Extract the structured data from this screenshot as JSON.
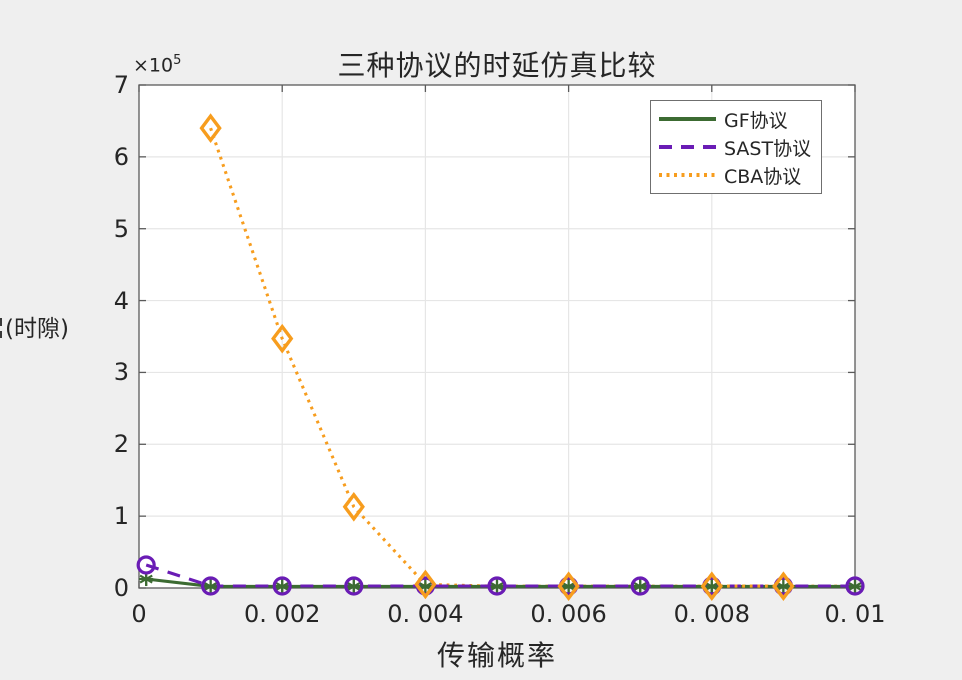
{
  "figure": {
    "title": "三种协议的时延仿真比较",
    "xlabel": "传输概率",
    "ylabel": "(时隙)",
    "exponent": {
      "base": "×10",
      "power": "5"
    }
  },
  "legend": {
    "items": [
      {
        "label": "GF协议",
        "color": "#3c6b32",
        "line": "solid"
      },
      {
        "label": "SAST协议",
        "color": "#6a1cb5",
        "line": "dashed"
      },
      {
        "label": "CBA协议",
        "color": "#f79d1e",
        "line": "dotted"
      }
    ]
  },
  "chart_data": {
    "type": "line",
    "title": "三种协议的时延仿真比较",
    "xlabel": "传输概率",
    "ylabel": "(时隙)",
    "y_exponent": 5,
    "xlim": [
      0,
      0.01
    ],
    "ylim": [
      0,
      700000
    ],
    "grid": true,
    "legend_position": "top-right",
    "x_ticks": {
      "values": [
        0,
        0.002,
        0.004,
        0.006,
        0.008,
        0.01
      ],
      "labels": [
        "0",
        "0. 002",
        "0. 004",
        "0. 006",
        "0. 008",
        "0. 01"
      ]
    },
    "y_ticks": {
      "values": [
        0,
        100000,
        200000,
        300000,
        400000,
        500000,
        600000,
        700000
      ],
      "labels": [
        "0",
        "1",
        "2",
        "3",
        "4",
        "5",
        "6",
        "7"
      ]
    },
    "series": [
      {
        "name": "GF协议",
        "color": "#3c6b32",
        "line": "solid",
        "marker": "asterisk",
        "x": [
          0.0001,
          0.001,
          0.002,
          0.003,
          0.004,
          0.005,
          0.006,
          0.007,
          0.008,
          0.009,
          0.01
        ],
        "y": [
          12500,
          2200,
          2200,
          2200,
          2200,
          2200,
          2200,
          2200,
          2200,
          2200,
          2200
        ],
        "marker_x": [
          0.0001,
          0.001,
          0.002,
          0.003,
          0.004,
          0.005,
          0.006,
          0.007,
          0.008,
          0.009,
          0.01
        ]
      },
      {
        "name": "SAST协议",
        "color": "#6a1cb5",
        "line": "dashed",
        "marker": "circle",
        "x": [
          0.0001,
          0.001,
          0.002,
          0.003,
          0.004,
          0.005,
          0.006,
          0.007,
          0.008,
          0.009,
          0.01
        ],
        "y": [
          32000,
          2800,
          2800,
          2800,
          2800,
          2800,
          2800,
          2800,
          2800,
          2800,
          2800
        ],
        "marker_x": [
          0.0001,
          0.001,
          0.002,
          0.003,
          0.004,
          0.005,
          0.006,
          0.007,
          0.008,
          0.009,
          0.01
        ]
      },
      {
        "name": "CBA协议",
        "color": "#f79d1e",
        "line": "dotted",
        "marker": "diamond",
        "x": [
          0.001,
          0.002,
          0.003,
          0.004,
          0.005,
          0.006,
          0.007,
          0.008,
          0.009,
          0.01
        ],
        "y": [
          640000,
          347000,
          113000,
          5000,
          2500,
          2500,
          2500,
          2500,
          2500,
          2500
        ],
        "marker_x": [
          0.001,
          0.002,
          0.003,
          0.004,
          0.006,
          0.008,
          0.009
        ]
      }
    ],
    "top_segment": {
      "series": "CBA协议",
      "x": [
        0.008,
        0.009
      ],
      "y": [
        2600,
        2600
      ]
    }
  },
  "style": {
    "figure_bg": "#efefef",
    "plot_bg": "#ffffff",
    "grid_color": "#e6e6e6",
    "axis_color": "#5a5a5a",
    "text_color": "#262626"
  }
}
